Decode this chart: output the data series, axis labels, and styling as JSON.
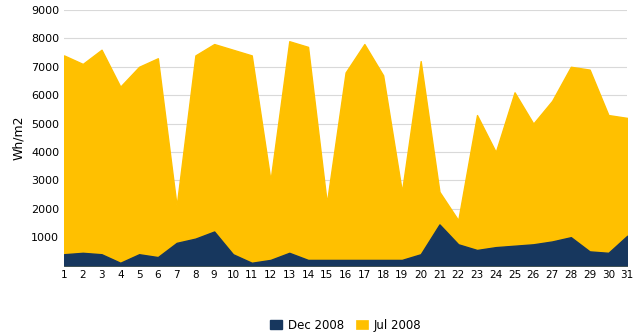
{
  "days": [
    1,
    2,
    3,
    4,
    5,
    6,
    7,
    8,
    9,
    10,
    11,
    12,
    13,
    14,
    15,
    16,
    17,
    18,
    19,
    20,
    21,
    22,
    23,
    24,
    25,
    26,
    27,
    28,
    29,
    30,
    31
  ],
  "jul": [
    7400,
    7100,
    7600,
    6300,
    7000,
    7300,
    2100,
    7400,
    7800,
    7600,
    7400,
    3000,
    7900,
    7700,
    2200,
    6800,
    7800,
    6700,
    2600,
    7200,
    2600,
    1600,
    5300,
    4000,
    6100,
    5000,
    5800,
    7000,
    6900,
    5300,
    5200
  ],
  "dec": [
    400,
    450,
    400,
    100,
    400,
    300,
    800,
    950,
    1200,
    400,
    100,
    200,
    450,
    200,
    200,
    200,
    200,
    200,
    200,
    400,
    1450,
    750,
    550,
    650,
    700,
    750,
    850,
    1000,
    500,
    450,
    1050
  ],
  "ylabel": "Wh/m2",
  "ylim": [
    0,
    9000
  ],
  "yticks": [
    0,
    1000,
    2000,
    3000,
    4000,
    5000,
    6000,
    7000,
    8000,
    9000
  ],
  "dec_color": "#17375E",
  "jul_color": "#FFC000",
  "dec_label": "Dec 2008",
  "jul_label": "Jul 2008",
  "background_color": "#FFFFFF",
  "grid_color": "#D9D9D9"
}
